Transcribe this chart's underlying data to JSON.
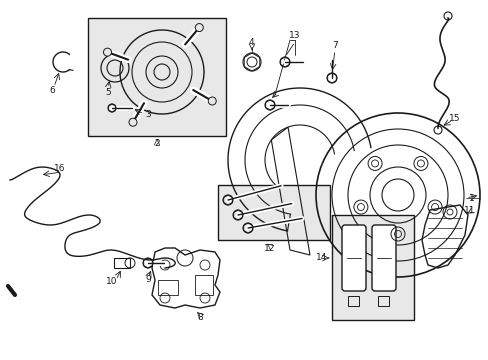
{
  "bg_color": "#ffffff",
  "line_color": "#1a1a1a",
  "box_fill": "#e8e8e8",
  "fig_width": 4.89,
  "fig_height": 3.6,
  "dpi": 100
}
